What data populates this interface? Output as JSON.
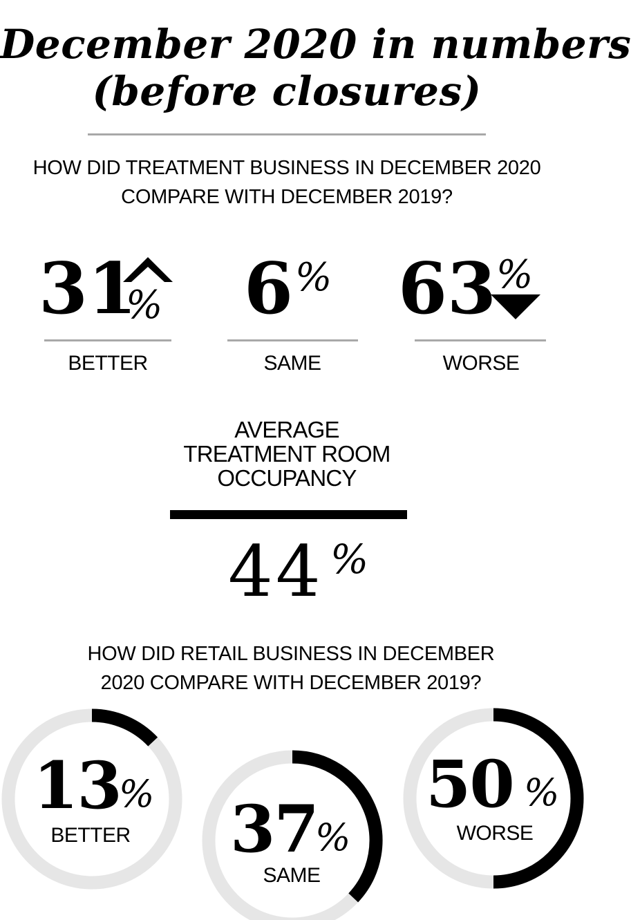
{
  "title": {
    "line1": "December 2020 in numbers",
    "line2": "(before closures)"
  },
  "treatment": {
    "question_line1": "HOW DID TREATMENT BUSINESS IN DECEMBER 2020",
    "question_line2": "COMPARE WITH DECEMBER 2019?",
    "items": [
      {
        "value": "31",
        "unit": "%",
        "label": "BETTER",
        "arrow": "up-arrow-icon"
      },
      {
        "value": "6",
        "unit": "%",
        "label": "SAME",
        "arrow": ""
      },
      {
        "value": "63",
        "unit": "%",
        "label": "WORSE",
        "arrow": "down-arrow-icon"
      }
    ]
  },
  "occupancy": {
    "label_line1": "AVERAGE",
    "label_line2": "TREATMENT ROOM",
    "label_line3": "OCCUPANCY",
    "value": "44",
    "unit": "%"
  },
  "retail": {
    "question_line1": "HOW DID RETAIL BUSINESS IN DECEMBER",
    "question_line2": "2020 COMPARE WITH DECEMBER 2019?"
  },
  "colors": {
    "track": "#e6e6e6",
    "fill": "#000000",
    "rule": "#a8a8a8"
  },
  "chart_data": [
    {
      "type": "bar",
      "categories": [
        "BETTER",
        "SAME",
        "WORSE"
      ],
      "values": [
        31,
        6,
        63
      ],
      "title": "HOW DID TREATMENT BUSINESS IN DECEMBER 2020 COMPARE WITH DECEMBER 2019?"
    },
    {
      "type": "pie",
      "categories": [
        "AVERAGE TREATMENT ROOM OCCUPANCY"
      ],
      "values": [
        44
      ]
    },
    {
      "type": "pie",
      "categories": [
        "BETTER",
        "SAME",
        "WORSE"
      ],
      "values": [
        13,
        37,
        50
      ],
      "title": "HOW DID RETAIL BUSINESS IN DECEMBER 2020 COMPARE WITH DECEMBER 2019?"
    }
  ]
}
